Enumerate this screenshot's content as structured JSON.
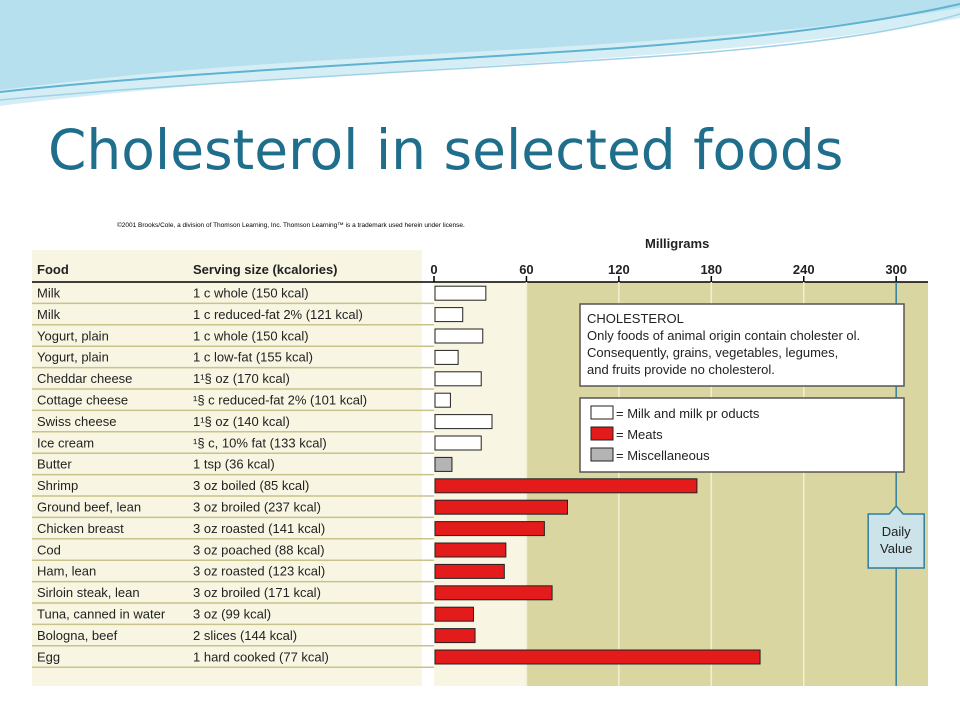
{
  "slide": {
    "title": "Cholesterol in selected foods",
    "copyright": "©2001 Brooks/Cole, a division of Thomson Learning, Inc. Thomson Learning™ is a trademark used herein under license."
  },
  "colors": {
    "title": "#1f6e8c",
    "milk": "#ffffff",
    "meats": "#e31b1b",
    "misc": "#b4b4b4",
    "plot_bg": "#d9d6a2",
    "row_line": "#c9c28a",
    "callout_bg": "#cce3ea"
  },
  "chart_data": {
    "type": "bar",
    "orientation": "horizontal",
    "xlabel": "Milligrams",
    "xlim": [
      0,
      320
    ],
    "xticks": [
      0,
      60,
      120,
      180,
      240,
      300
    ],
    "column_headers": {
      "food": "Food",
      "serving": "Serving size (kcalories)"
    },
    "rows": [
      {
        "food": "Milk",
        "serving": "1 c whole (150 kcal)",
        "value": 33,
        "group": "milk"
      },
      {
        "food": "Milk",
        "serving": "1 c reduced-fat 2% (121 kcal)",
        "value": 18,
        "group": "milk"
      },
      {
        "food": "Yogurt, plain",
        "serving": "1 c whole (150 kcal)",
        "value": 31,
        "group": "milk"
      },
      {
        "food": "Yogurt, plain",
        "serving": "1 c low-fat (155 kcal)",
        "value": 15,
        "group": "milk"
      },
      {
        "food": "Cheddar cheese",
        "serving": "1¹§ oz (170 kcal)",
        "value": 30,
        "group": "milk"
      },
      {
        "food": "Cottage cheese",
        "serving": "¹§ c reduced-fat 2% (101 kcal)",
        "value": 10,
        "group": "milk"
      },
      {
        "food": "Swiss cheese",
        "serving": "1¹§ oz (140 kcal)",
        "value": 37,
        "group": "milk"
      },
      {
        "food": "Ice cream",
        "serving": "¹§ c, 10% fat (133 kcal)",
        "value": 30,
        "group": "milk"
      },
      {
        "food": "Butter",
        "serving": "1 tsp (36 kcal)",
        "value": 11,
        "group": "misc"
      },
      {
        "food": "Shrimp",
        "serving": "3 oz boiled (85 kcal)",
        "value": 170,
        "group": "meats"
      },
      {
        "food": "Ground beef, lean",
        "serving": "3 oz broiled (237 kcal)",
        "value": 86,
        "group": "meats"
      },
      {
        "food": "Chicken breast",
        "serving": "3 oz roasted (141 kcal)",
        "value": 71,
        "group": "meats"
      },
      {
        "food": "Cod",
        "serving": "3 oz poached (88 kcal)",
        "value": 46,
        "group": "meats"
      },
      {
        "food": "Ham, lean",
        "serving": "3 oz roasted (123 kcal)",
        "value": 45,
        "group": "meats"
      },
      {
        "food": "Sirloin steak, lean",
        "serving": "3 oz broiled (171 kcal)",
        "value": 76,
        "group": "meats"
      },
      {
        "food": "Tuna, canned in water",
        "serving": "3 oz (99 kcal)",
        "value": 25,
        "group": "meats"
      },
      {
        "food": "Bologna, beef",
        "serving": "2 slices (144 kcal)",
        "value": 26,
        "group": "meats"
      },
      {
        "food": "Egg",
        "serving": "1 hard cooked (77 kcal)",
        "value": 211,
        "group": "meats"
      }
    ],
    "info_box": {
      "heading": "CHOLESTEROL",
      "lines": [
        "Only foods of animal origin contain cholester ol.",
        "Consequently, grains, vegetables, legumes,",
        "and fruits provide no cholesterol."
      ]
    },
    "legend": [
      {
        "group": "milk",
        "label": "= Milk and milk pr oducts"
      },
      {
        "group": "meats",
        "label": "= Meats"
      },
      {
        "group": "misc",
        "label": "= Miscellaneous"
      }
    ],
    "reference_line": {
      "value": 300,
      "label_lines": [
        "Daily",
        "Value"
      ]
    }
  }
}
